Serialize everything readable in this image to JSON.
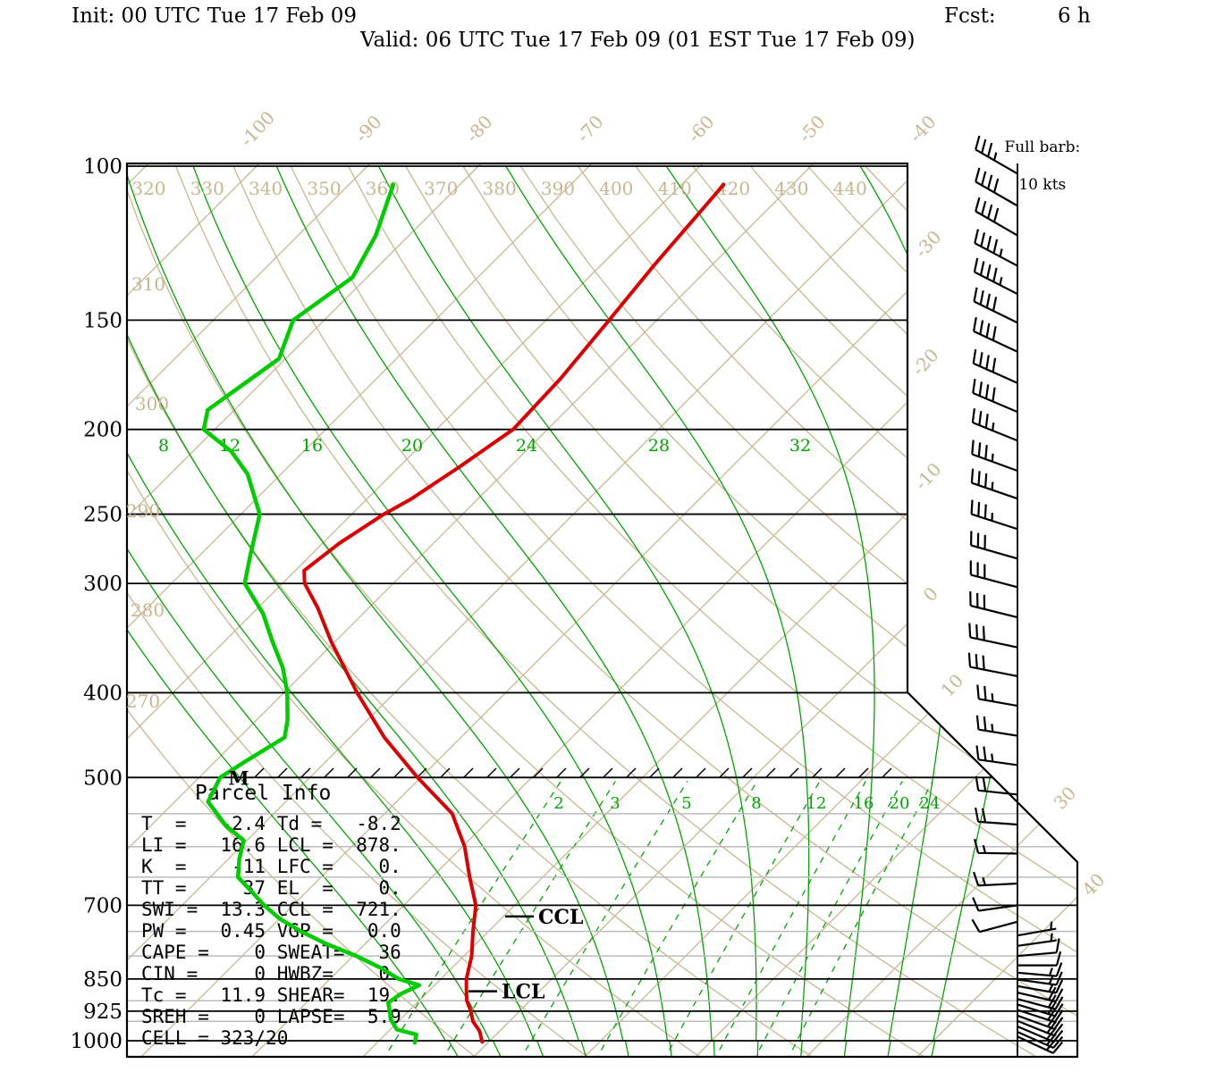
{
  "header": {
    "init": "Init: 00 UTC Tue 17 Feb 09",
    "fcst_label": "Fcst:",
    "fcst_value": "6 h",
    "valid": "Valid: 06 UTC Tue 17 Feb 09 (01 EST Tue 17 Feb 09)"
  },
  "legend": {
    "line1": "Full barb:",
    "line2": "10 kts"
  },
  "colors": {
    "background": "#FFFFFF",
    "temperature_trace": "#DD0000",
    "dewpoint_trace": "#00CC00",
    "tan_grid": "#C8B690",
    "green_grid": "#00A400",
    "minor_line_gray": "#BBBBBB",
    "ink": "#000000"
  },
  "chart_data": {
    "type": "skewt-log-p-sounding",
    "title": "",
    "xlabel": "temperature (C, skewed 45 deg)",
    "ylabel": "pressure (hPa, log scale)",
    "pressure_ticks": [
      100,
      150,
      200,
      250,
      300,
      400,
      500,
      700,
      850,
      925,
      1000
    ],
    "minor_pressure_lines": [
      550,
      600,
      650,
      750,
      800,
      900,
      950
    ],
    "isotherms_c": {
      "min": -110,
      "max": 40,
      "step": 10,
      "top_labels": [
        -100,
        -90,
        -80,
        -70,
        -60,
        -50,
        -40
      ],
      "right_labels": [
        -30,
        -20,
        -10,
        0,
        10,
        30,
        40
      ]
    },
    "dry_adiabats_k": {
      "values": [
        270,
        280,
        290,
        300,
        310,
        320,
        330,
        340,
        350,
        360,
        370,
        380,
        390,
        400,
        410,
        420,
        430,
        440
      ],
      "top_labels": [
        320,
        330,
        340,
        350,
        360,
        370,
        380,
        390,
        400,
        410,
        420,
        430,
        440
      ],
      "left_labels": [
        310,
        300,
        290,
        280,
        270
      ]
    },
    "moist_adiabats_c": {
      "values": [
        -4,
        0,
        4,
        8,
        12,
        16,
        20,
        24,
        28,
        32,
        36,
        40
      ],
      "labels": [
        8,
        12,
        16,
        20,
        24,
        28,
        32
      ]
    },
    "mixing_ratio_gkg": {
      "values": [
        2,
        3,
        5,
        8,
        12,
        16,
        20,
        24
      ]
    },
    "temperature_profile_p_t": [
      [
        105,
        -56.2
      ],
      [
        130,
        -55.2
      ],
      [
        150,
        -54.3
      ],
      [
        175,
        -53.4
      ],
      [
        200,
        -53.1
      ],
      [
        220,
        -54.5
      ],
      [
        240,
        -56.0
      ],
      [
        250,
        -57.1
      ],
      [
        270,
        -58.5
      ],
      [
        290,
        -59.2
      ],
      [
        300,
        -58.0
      ],
      [
        320,
        -54.6
      ],
      [
        350,
        -50.3
      ],
      [
        400,
        -43.4
      ],
      [
        450,
        -36.9
      ],
      [
        500,
        -30.3
      ],
      [
        550,
        -23.9
      ],
      [
        600,
        -19.8
      ],
      [
        650,
        -16.6
      ],
      [
        700,
        -13.5
      ],
      [
        750,
        -11.4
      ],
      [
        800,
        -9.3
      ],
      [
        850,
        -7.7
      ],
      [
        875,
        -6.7
      ],
      [
        900,
        -5.7
      ],
      [
        925,
        -4.4
      ],
      [
        950,
        -3.3
      ],
      [
        975,
        -1.8
      ],
      [
        1003,
        -0.6
      ]
    ],
    "dewpoint_profile_p_t": [
      [
        105,
        -86.0
      ],
      [
        120,
        -83.0
      ],
      [
        134,
        -81.3
      ],
      [
        150,
        -82.8
      ],
      [
        166,
        -80.6
      ],
      [
        190,
        -82.4
      ],
      [
        200,
        -81.0
      ],
      [
        212,
        -76.5
      ],
      [
        225,
        -73.0
      ],
      [
        250,
        -68.3
      ],
      [
        280,
        -65.3
      ],
      [
        300,
        -63.4
      ],
      [
        325,
        -59.0
      ],
      [
        350,
        -55.6
      ],
      [
        375,
        -52.3
      ],
      [
        400,
        -49.7
      ],
      [
        430,
        -47.2
      ],
      [
        450,
        -45.9
      ],
      [
        480,
        -47.3
      ],
      [
        500,
        -48.1
      ],
      [
        533,
        -47.0
      ],
      [
        568,
        -43.2
      ],
      [
        590,
        -40.3
      ],
      [
        620,
        -39.0
      ],
      [
        650,
        -37.5
      ],
      [
        680,
        -34.5
      ],
      [
        700,
        -32.6
      ],
      [
        725,
        -30.0
      ],
      [
        750,
        -26.9
      ],
      [
        775,
        -23.5
      ],
      [
        800,
        -19.7
      ],
      [
        825,
        -16.5
      ],
      [
        850,
        -13.8
      ],
      [
        864,
        -11.4
      ],
      [
        885,
        -12.3
      ],
      [
        905,
        -12.6
      ],
      [
        930,
        -11.5
      ],
      [
        945,
        -10.9
      ],
      [
        971,
        -9.4
      ],
      [
        984,
        -7.2
      ],
      [
        1005,
        -6.6
      ]
    ],
    "wind_barbs_p_dir_spd": [
      [
        102,
        300,
        35
      ],
      [
        111,
        300,
        40
      ],
      [
        120,
        300,
        40
      ],
      [
        130,
        298,
        45
      ],
      [
        140,
        297,
        45
      ],
      [
        151,
        296,
        40
      ],
      [
        163,
        295,
        40
      ],
      [
        177,
        294,
        40
      ],
      [
        191,
        293,
        40
      ],
      [
        206,
        292,
        35
      ],
      [
        223,
        290,
        35
      ],
      [
        240,
        289,
        35
      ],
      [
        260,
        288,
        35
      ],
      [
        281,
        286,
        30
      ],
      [
        303,
        285,
        30
      ],
      [
        328,
        284,
        30
      ],
      [
        355,
        282,
        30
      ],
      [
        383,
        281,
        30
      ],
      [
        414,
        280,
        25
      ],
      [
        448,
        279,
        25
      ],
      [
        484,
        278,
        25
      ],
      [
        523,
        276,
        20
      ],
      [
        566,
        274,
        20
      ],
      [
        611,
        271,
        15
      ],
      [
        661,
        267,
        15
      ],
      [
        700,
        262,
        10
      ],
      [
        731,
        255,
        10
      ],
      [
        758,
        80,
        5
      ],
      [
        779,
        82,
        5
      ],
      [
        800,
        85,
        10
      ],
      [
        820,
        90,
        10
      ],
      [
        836,
        95,
        15
      ],
      [
        851,
        98,
        15
      ],
      [
        866,
        100,
        15
      ],
      [
        881,
        103,
        20
      ],
      [
        896,
        105,
        20
      ],
      [
        909,
        107,
        20
      ],
      [
        922,
        108,
        20
      ],
      [
        936,
        110,
        20
      ],
      [
        949,
        112,
        20
      ],
      [
        963,
        113,
        20
      ],
      [
        977,
        114,
        20
      ],
      [
        989,
        115,
        20
      ]
    ],
    "markers": {
      "ccl": {
        "label": "CCL",
        "pressure": 721
      },
      "lcl": {
        "label": "LCL",
        "pressure": 878
      },
      "mixing_marker": {
        "label": "M",
        "pressure": 505
      }
    }
  },
  "parcel_info": {
    "title": "Parcel Info",
    "rows": [
      "T  =   -2.4 Td =   -8.2",
      "LI =   16.6 LCL =  878.",
      "K  =    -11 LFC =    0.",
      "TT =     37 EL  =    0.",
      "SWI =  13.3 CCL =  721.",
      "PW =   0.45 VGP =   0.0",
      "CAPE =    0 SWEAT=   36",
      "CIN =     0 HWBZ=    0.",
      "Tc =   11.9 SHEAR=  19.",
      "SREH =    0 LAPSE=  5.9",
      "CELL = 323/20"
    ]
  }
}
